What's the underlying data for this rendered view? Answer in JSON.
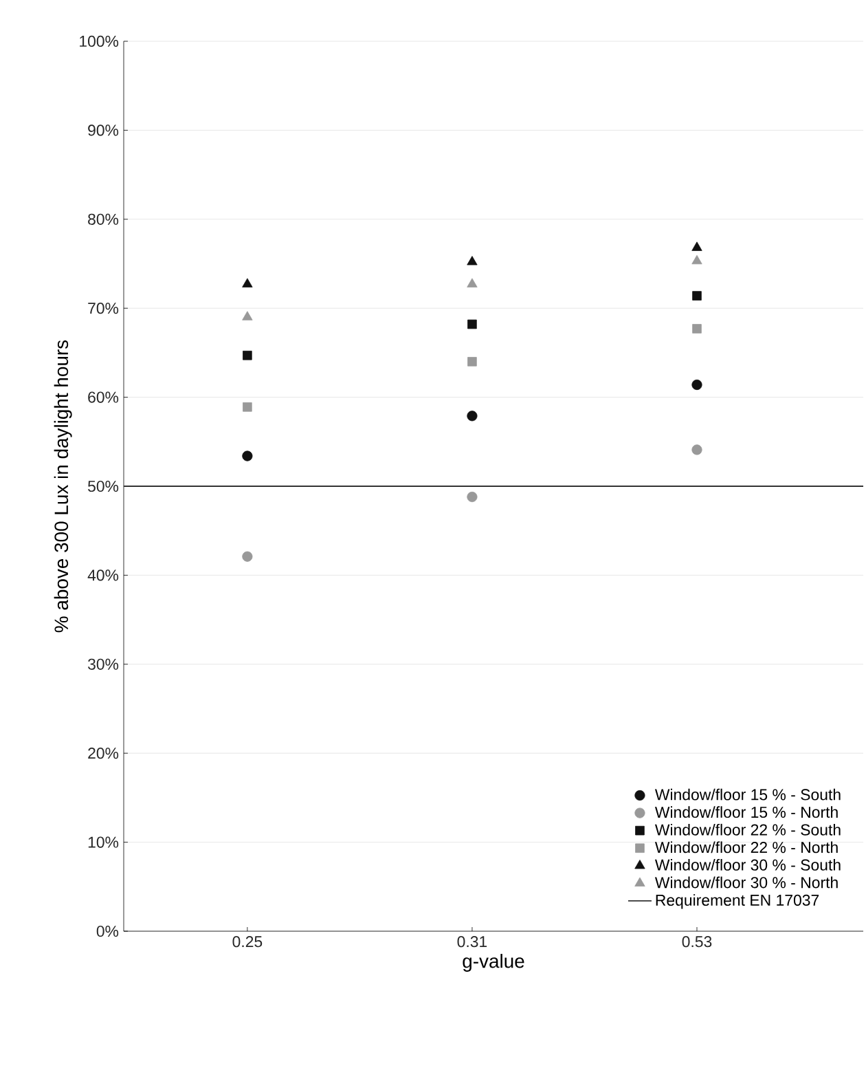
{
  "chart_data": {
    "type": "scatter",
    "xlabel": "g-value",
    "ylabel": "% above 300 Lux in daylight hours",
    "categories": [
      "0.25",
      "0.31",
      "0.53"
    ],
    "series": [
      {
        "name": "Window/floor 15 % - South",
        "color": "#111111",
        "marker": "circle",
        "values": [
          53.4,
          57.9,
          61.4
        ]
      },
      {
        "name": "Window/floor 15 % - North",
        "color": "#999999",
        "marker": "circle",
        "values": [
          42.1,
          48.8,
          54.1
        ]
      },
      {
        "name": "Window/floor 22 % - South",
        "color": "#111111",
        "marker": "square",
        "values": [
          64.7,
          68.2,
          71.4
        ]
      },
      {
        "name": "Window/floor 22 % - North",
        "color": "#999999",
        "marker": "square",
        "values": [
          58.9,
          64.0,
          67.7
        ]
      },
      {
        "name": "Window/floor 30 % - South",
        "color": "#111111",
        "marker": "triangle",
        "values": [
          72.7,
          75.2,
          76.8
        ]
      },
      {
        "name": "Window/floor 30 % - North",
        "color": "#999999",
        "marker": "triangle",
        "values": [
          69.0,
          72.7,
          75.3
        ]
      }
    ],
    "ylim": [
      0,
      100
    ],
    "yticks": [
      {
        "value": 0,
        "label": "0%"
      },
      {
        "value": 10,
        "label": "10%"
      },
      {
        "value": 20,
        "label": "20%"
      },
      {
        "value": 30,
        "label": "30%"
      },
      {
        "value": 40,
        "label": "40%"
      },
      {
        "value": 50,
        "label": "50%"
      },
      {
        "value": 60,
        "label": "60%"
      },
      {
        "value": 70,
        "label": "70%"
      },
      {
        "value": 80,
        "label": "80%"
      },
      {
        "value": 90,
        "label": "90%"
      },
      {
        "value": 100,
        "label": "100%"
      }
    ],
    "ref_lines": [
      {
        "axis": "y",
        "value": 50,
        "label": "Requirement EN 17037",
        "color": "#333333",
        "line_style": "solid"
      }
    ],
    "grid": "y",
    "legend": "bottom right"
  }
}
